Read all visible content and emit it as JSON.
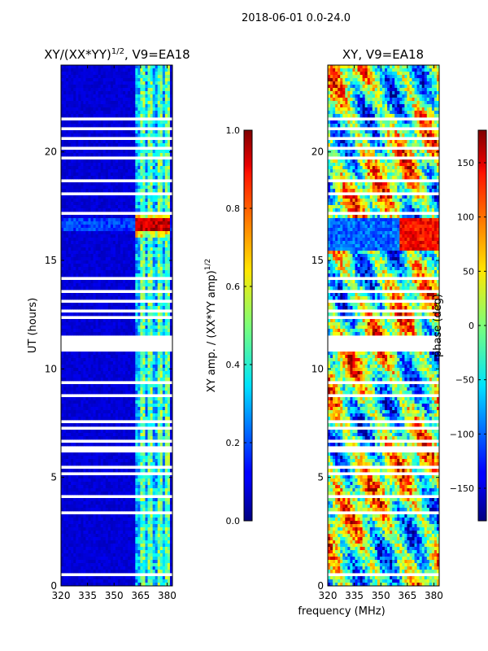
{
  "chart_data": {
    "type": "heatmap",
    "suptitle": "2018-06-01 0.0-24.0",
    "xlabel": "frequency (MHz)",
    "panels": [
      {
        "title_main": "XY/(XX*YY)",
        "title_sup": "1/2",
        "title_tail": ", V9=EA18",
        "ylabel": "UT (hours)",
        "xlim": [
          320,
          383
        ],
        "ylim": [
          0,
          24
        ],
        "xticks": [
          "320",
          "335",
          "350",
          "365",
          "380"
        ],
        "xtick_values": [
          320,
          335,
          350,
          365,
          380
        ],
        "yticks": [
          "0",
          "5",
          "10",
          "15",
          "20"
        ],
        "ytick_values": [
          0,
          5,
          10,
          15,
          20
        ],
        "colorbar": {
          "label_main": "XY amp. / (XX*YY amp)",
          "label_sup": "1/2",
          "range": [
            0.0,
            1.0
          ],
          "ticks": [
            "0.0",
            "0.2",
            "0.4",
            "0.6",
            "0.8",
            "1.0"
          ],
          "tick_values": [
            0.0,
            0.2,
            0.4,
            0.6,
            0.8,
            1.0
          ]
        }
      },
      {
        "title_main": "XY, V9=EA18",
        "title_sup": "",
        "title_tail": "",
        "ylabel": "",
        "xlim": [
          320,
          383
        ],
        "ylim": [
          0,
          24
        ],
        "xticks": [
          "320",
          "335",
          "350",
          "365",
          "380"
        ],
        "xtick_values": [
          320,
          335,
          350,
          365,
          380
        ],
        "yticks": [
          "0",
          "5",
          "10",
          "15",
          "20"
        ],
        "ytick_values": [
          0,
          5,
          10,
          15,
          20
        ],
        "colorbar": {
          "label_main": "phase (deg)",
          "label_sup": "",
          "range": [
            -180,
            180
          ],
          "ticks": [
            "−150",
            "−100",
            "−50",
            "0",
            "50",
            "100",
            "150"
          ],
          "tick_values": [
            -150,
            -100,
            -50,
            0,
            50,
            100,
            150
          ]
        }
      }
    ],
    "flagged_ut_hours": [
      [
        10.8,
        11.6
      ],
      [
        12.35,
        12.5
      ],
      [
        12.6,
        12.75
      ],
      [
        13.0,
        13.2
      ],
      [
        13.55,
        13.65
      ],
      [
        14.1,
        14.2
      ],
      [
        6.2,
        6.45
      ],
      [
        6.6,
        6.8
      ],
      [
        5.1,
        5.25
      ],
      [
        5.45,
        5.6
      ],
      [
        7.2,
        7.35
      ],
      [
        7.55,
        7.65
      ],
      [
        4.1,
        4.2
      ],
      [
        3.35,
        3.45
      ],
      [
        3.55,
        3.6
      ],
      [
        1.9,
        2.0
      ],
      [
        0.45,
        0.55
      ],
      [
        15.4,
        15.5
      ],
      [
        16.0,
        16.05
      ],
      [
        17.15,
        17.25
      ],
      [
        18.05,
        18.15
      ],
      [
        18.6,
        18.7
      ],
      [
        19.3,
        19.4
      ],
      [
        19.7,
        19.75
      ],
      [
        20.1,
        20.2
      ],
      [
        20.6,
        20.7
      ],
      [
        21.0,
        21.1
      ],
      [
        21.5,
        21.6
      ],
      [
        22.3,
        22.4
      ],
      [
        22.6,
        22.7
      ],
      [
        8.2,
        8.3
      ],
      [
        8.7,
        8.8
      ],
      [
        9.3,
        9.4
      ],
      [
        10.0,
        10.1
      ]
    ],
    "amplitude_notes": "Amplitude ~0.05 (dark blue) across most channels; elevated 0.2-0.5 in channels 362-382 MHz; peaks ~0.9-1.0 near UT 16.5-16.8 h in channels 362-382 MHz",
    "colormap": "jet"
  }
}
